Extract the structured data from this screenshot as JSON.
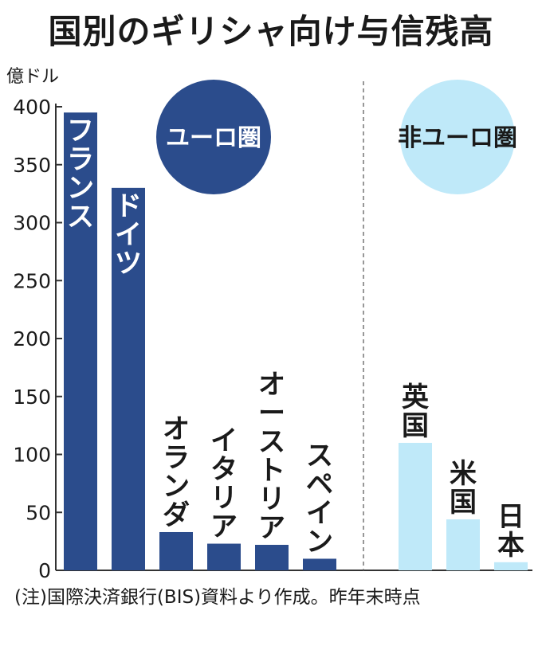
{
  "chart_data": {
    "type": "bar",
    "title": "国別のギリシャ向け与信残高",
    "ylabel": "億ドル",
    "ylim": [
      0,
      400
    ],
    "yticks": [
      "0",
      "50",
      "100",
      "150",
      "200",
      "250",
      "300",
      "350",
      "400"
    ],
    "groups": [
      {
        "name": "ユーロ圏",
        "color": "#2b4c8c",
        "categories": [
          "フランス",
          "ドイツ",
          "オランダ",
          "イタリア",
          "オーストリア",
          "スペイン"
        ],
        "values": [
          395,
          330,
          33,
          23,
          22,
          10
        ]
      },
      {
        "name": "非ユーロ圏",
        "color": "#bfe9f9",
        "categories": [
          "英国",
          "米国",
          "日本"
        ],
        "values": [
          110,
          44,
          7
        ]
      }
    ],
    "note": "(注)国際決済銀行(BIS)資料より作成。昨年末時点"
  },
  "colors": {
    "axis": "#333333",
    "divider": "#777777"
  }
}
